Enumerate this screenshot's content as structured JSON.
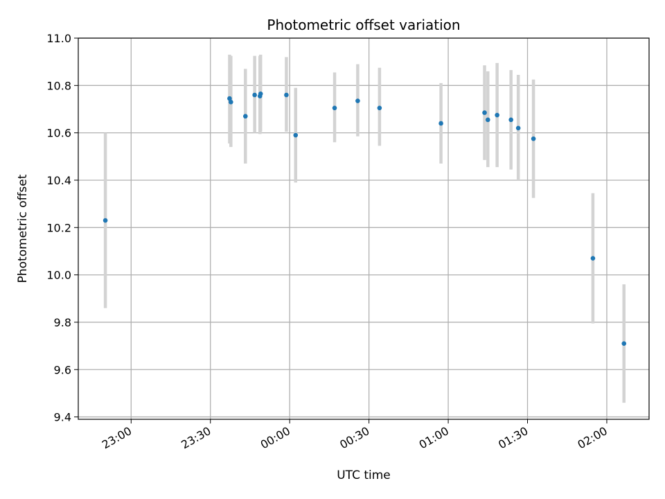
{
  "chart_data": {
    "type": "scatter",
    "title": "Photometric offset variation",
    "xlabel": "UTC time",
    "ylabel": "Photometric offset",
    "grid": true,
    "legend": "none",
    "x_unit": "clock time (HH:MM) around midnight",
    "xlim": [
      "22:40",
      "02:16"
    ],
    "ylim": [
      9.39,
      11.0
    ],
    "x_ticks": [
      "23:00",
      "23:30",
      "00:00",
      "00:30",
      "01:00",
      "01:30",
      "02:00"
    ],
    "y_ticks": [
      "9.4",
      "9.6",
      "9.8",
      "10.0",
      "10.2",
      "10.4",
      "10.6",
      "10.8",
      "11.0"
    ],
    "points": [
      {
        "x": "22:50:15",
        "y": 10.23,
        "err_low": 9.86,
        "err_high": 10.6
      },
      {
        "x": "23:37:15",
        "y": 10.745,
        "err_low": 10.555,
        "err_high": 10.93
      },
      {
        "x": "23:37:45",
        "y": 10.73,
        "err_low": 10.54,
        "err_high": 10.925
      },
      {
        "x": "23:43:15",
        "y": 10.67,
        "err_low": 10.47,
        "err_high": 10.87
      },
      {
        "x": "23:46:45",
        "y": 10.76,
        "err_low": 10.6,
        "err_high": 10.925
      },
      {
        "x": "23:48:45",
        "y": 10.755,
        "err_low": 10.595,
        "err_high": 10.925
      },
      {
        "x": "23:49:00",
        "y": 10.765,
        "err_low": 10.605,
        "err_high": 10.93
      },
      {
        "x": "23:58:45",
        "y": 10.76,
        "err_low": 10.605,
        "err_high": 10.92
      },
      {
        "x": "00:02:15",
        "y": 10.59,
        "err_low": 10.39,
        "err_high": 10.79
      },
      {
        "x": "00:17:00",
        "y": 10.705,
        "err_low": 10.56,
        "err_high": 10.855
      },
      {
        "x": "00:25:45",
        "y": 10.735,
        "err_low": 10.585,
        "err_high": 10.89
      },
      {
        "x": "00:34:00",
        "y": 10.705,
        "err_low": 10.545,
        "err_high": 10.875
      },
      {
        "x": "00:57:15",
        "y": 10.64,
        "err_low": 10.47,
        "err_high": 10.81
      },
      {
        "x": "01:13:45",
        "y": 10.685,
        "err_low": 10.485,
        "err_high": 10.885
      },
      {
        "x": "01:15:00",
        "y": 10.655,
        "err_low": 10.455,
        "err_high": 10.86
      },
      {
        "x": "01:18:30",
        "y": 10.675,
        "err_low": 10.455,
        "err_high": 10.895
      },
      {
        "x": "01:23:45",
        "y": 10.655,
        "err_low": 10.445,
        "err_high": 10.865
      },
      {
        "x": "01:26:30",
        "y": 10.62,
        "err_low": 10.4,
        "err_high": 10.845
      },
      {
        "x": "01:32:15",
        "y": 10.575,
        "err_low": 10.325,
        "err_high": 10.825
      },
      {
        "x": "01:54:45",
        "y": 10.07,
        "err_low": 9.795,
        "err_high": 10.345
      },
      {
        "x": "02:06:30",
        "y": 9.71,
        "err_low": 9.46,
        "err_high": 9.96
      }
    ],
    "colors": {
      "marker": "#1f77b4",
      "errorbar": "#d3d3d3",
      "grid": "#b0b0b0",
      "axes": "#000000"
    }
  }
}
